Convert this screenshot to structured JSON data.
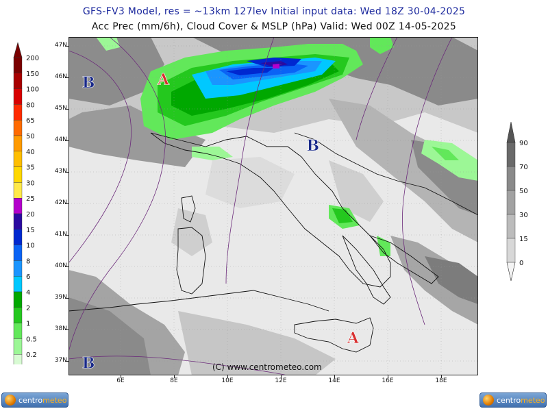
{
  "title_line1": "GFS-FV3 Model, res = ~13km 127lev    Initial input data: Wed 18Z 30-04-2025",
  "title_line2": "Acc Prec (mm/6h), Cloud Cover & MSLP (hPa)  Valid: Wed 00Z 14-05-2025",
  "copyright": "(C) www.centrometeo.com",
  "latitude_labels": [
    "47N",
    "46N",
    "45N",
    "44N",
    "43N",
    "42N",
    "41N",
    "40N",
    "39N",
    "38N",
    "37N"
  ],
  "longitude_labels": [
    "6E",
    "8E",
    "10E",
    "12E",
    "14E",
    "16E",
    "18E"
  ],
  "pressure_centers": [
    {
      "type": "low",
      "symbol": "B",
      "lon": 4.8,
      "lat": 45.8
    },
    {
      "type": "high",
      "symbol": "A",
      "lon": 7.6,
      "lat": 45.9
    },
    {
      "type": "low",
      "symbol": "B",
      "lon": 13.2,
      "lat": 43.8
    },
    {
      "type": "high",
      "symbol": "A",
      "lon": 14.7,
      "lat": 37.7
    },
    {
      "type": "low",
      "symbol": "B",
      "lon": 4.8,
      "lat": 36.9
    }
  ],
  "precip_scale": {
    "labels": [
      "200",
      "150",
      "100",
      "80",
      "65",
      "50",
      "40",
      "35",
      "30",
      "25",
      "20",
      "15",
      "10",
      "8",
      "6",
      "4",
      "2",
      "1",
      "0.5",
      "0.2"
    ],
    "colors": [
      "#7a0000",
      "#a80000",
      "#d80000",
      "#ff2a00",
      "#ff6a00",
      "#ff9a00",
      "#ffbe00",
      "#ffd800",
      "#ffe94a",
      "#b400cc",
      "#2a0aa0",
      "#0028d0",
      "#0a63f5",
      "#1a95ff",
      "#00c8ff",
      "#00a800",
      "#24c81e",
      "#62e85a",
      "#9cf796",
      "#d8fbd3"
    ]
  },
  "cloud_scale": {
    "labels": [
      "90",
      "70",
      "50",
      "30",
      "15",
      "0"
    ],
    "colors": [
      "#6a6a6a",
      "#8a8a8a",
      "#a2a2a2",
      "#bcbcbc",
      "#d8d8d8",
      "#eeeeee"
    ]
  },
  "branding": {
    "logo_left": "centrometeo",
    "logo_right": "centrometeo",
    "logo_text_a": "centro",
    "logo_text_b": "meteo"
  },
  "colors": {
    "low_center": "#1a2a8a",
    "high_center": "#d83030",
    "isobar": "#6b2a7a"
  }
}
